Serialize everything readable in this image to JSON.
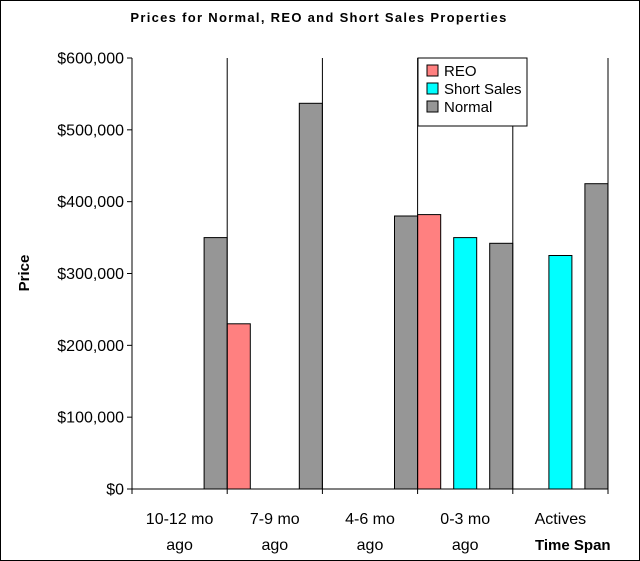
{
  "chart_data": {
    "type": "bar",
    "title": "Prices for Normal, REO and Short  Sales Properties",
    "xlabel": "Time Span",
    "ylabel": "Price",
    "categories": [
      [
        "10-12 mo",
        "ago"
      ],
      [
        "7-9 mo",
        "ago"
      ],
      [
        "4-6 mo",
        "ago"
      ],
      [
        "0-3 mo",
        "ago"
      ],
      [
        "Actives"
      ]
    ],
    "series": [
      {
        "name": "REO",
        "color": "#FF8080",
        "values": [
          null,
          230000,
          null,
          382000,
          null
        ]
      },
      {
        "name": "Short Sales",
        "color": "#00FFFF",
        "values": [
          null,
          null,
          null,
          350000,
          325000
        ]
      },
      {
        "name": "Normal",
        "color": "#969696",
        "values": [
          350000,
          537000,
          380000,
          342000,
          425000
        ]
      }
    ],
    "ylim": [
      0,
      600000
    ],
    "yticks": [
      0,
      100000,
      200000,
      300000,
      400000,
      500000,
      600000
    ],
    "ytick_labels": [
      "$0",
      "$100,000",
      "$200,000",
      "$300,000",
      "$400,000",
      "$500,000",
      "$600,000"
    ],
    "grid": {
      "horizontal": false,
      "vertical": true
    },
    "legend_position": "top-right"
  }
}
